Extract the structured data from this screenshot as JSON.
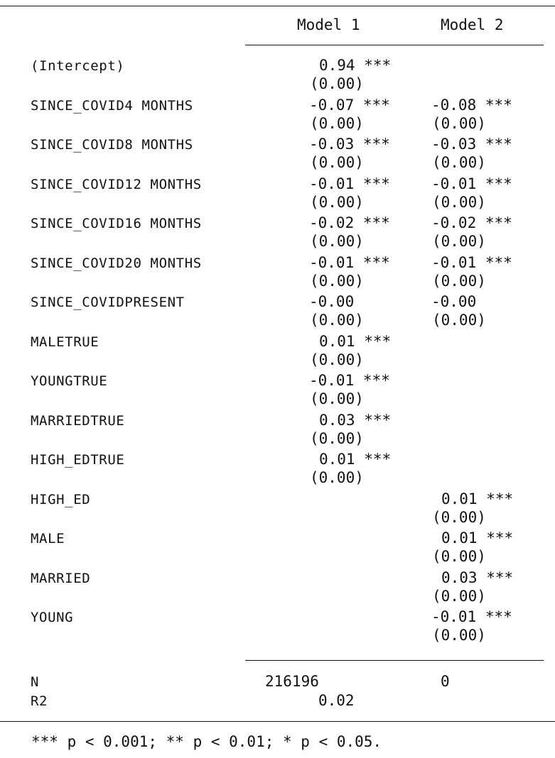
{
  "table": {
    "columns": [
      "Model 1",
      "Model 2"
    ],
    "rows": [
      {
        "label": "(Intercept)",
        "m1_est": "0.94 ***",
        "m1_se": "(0.00)",
        "m2_est": "",
        "m2_se": ""
      },
      {
        "label": "SINCE_COVID4 MONTHS",
        "m1_est": "-0.07 ***",
        "m1_se": "(0.00)",
        "m2_est": "-0.08 ***",
        "m2_se": "(0.00)"
      },
      {
        "label": "SINCE_COVID8 MONTHS",
        "m1_est": "-0.03 ***",
        "m1_se": "(0.00)",
        "m2_est": "-0.03 ***",
        "m2_se": "(0.00)"
      },
      {
        "label": "SINCE_COVID12 MONTHS",
        "m1_est": "-0.01 ***",
        "m1_se": "(0.00)",
        "m2_est": "-0.01 ***",
        "m2_se": "(0.00)"
      },
      {
        "label": "SINCE_COVID16 MONTHS",
        "m1_est": "-0.02 ***",
        "m1_se": "(0.00)",
        "m2_est": "-0.02 ***",
        "m2_se": "(0.00)"
      },
      {
        "label": "SINCE_COVID20 MONTHS",
        "m1_est": "-0.01 ***",
        "m1_se": "(0.00)",
        "m2_est": "-0.01 ***",
        "m2_se": "(0.00)"
      },
      {
        "label": "SINCE_COVIDPRESENT",
        "m1_est": "-0.00",
        "m1_se": "(0.00)",
        "m2_est": "-0.00",
        "m2_se": "(0.00)"
      },
      {
        "label": "MALETRUE",
        "m1_est": "0.01 ***",
        "m1_se": "(0.00)",
        "m2_est": "",
        "m2_se": ""
      },
      {
        "label": "YOUNGTRUE",
        "m1_est": "-0.01 ***",
        "m1_se": "(0.00)",
        "m2_est": "",
        "m2_se": ""
      },
      {
        "label": "MARRIEDTRUE",
        "m1_est": "0.03 ***",
        "m1_se": "(0.00)",
        "m2_est": "",
        "m2_se": ""
      },
      {
        "label": "HIGH_EDTRUE",
        "m1_est": "0.01 ***",
        "m1_se": "(0.00)",
        "m2_est": "",
        "m2_se": ""
      },
      {
        "label": "HIGH_ED",
        "m1_est": "",
        "m1_se": "",
        "m2_est": "0.01 ***",
        "m2_se": "(0.00)"
      },
      {
        "label": "MALE",
        "m1_est": "",
        "m1_se": "",
        "m2_est": "0.01 ***",
        "m2_se": "(0.00)"
      },
      {
        "label": "MARRIED",
        "m1_est": "",
        "m1_se": "",
        "m2_est": "0.03 ***",
        "m2_se": "(0.00)"
      },
      {
        "label": "YOUNG",
        "m1_est": "",
        "m1_se": "",
        "m2_est": "-0.01 ***",
        "m2_se": "(0.00)"
      }
    ],
    "stats": [
      {
        "label": "N",
        "m1": "216196",
        "m2": "0"
      },
      {
        "label": "R2",
        "m1": "0.02",
        "m2": ""
      }
    ],
    "footnote": "*** p < 0.001; ** p < 0.01; * p < 0.05."
  }
}
